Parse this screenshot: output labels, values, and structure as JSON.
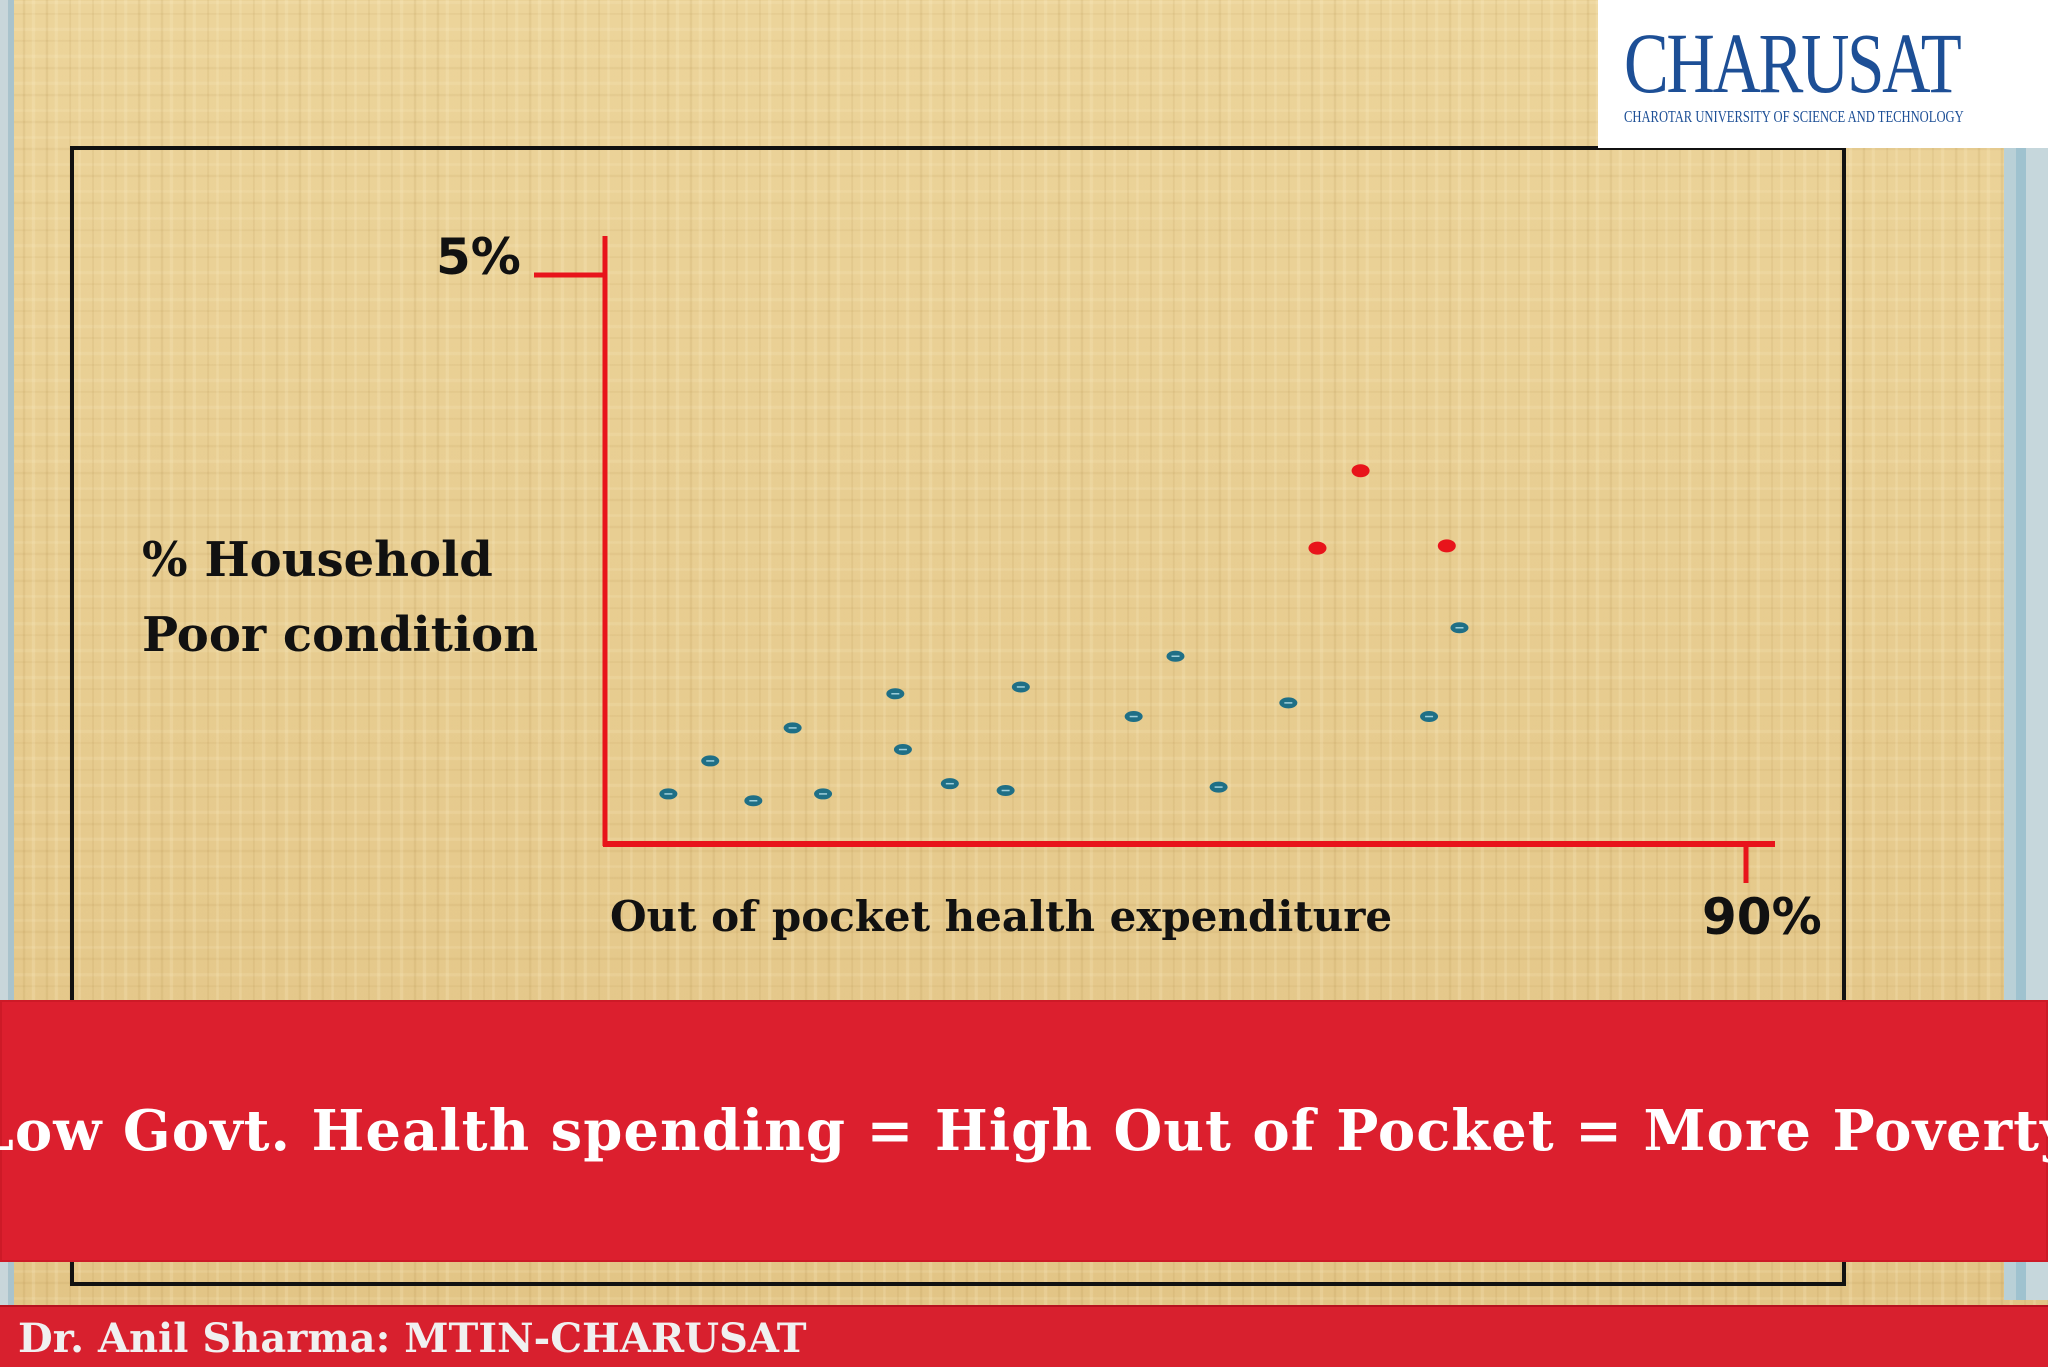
{
  "logo": {
    "title": "CHARUSAT",
    "subtitle": "CHAROTAR UNIVERSITY OF SCIENCE AND TECHNOLOGY",
    "icon": "charusat-emblem-icon"
  },
  "chart_data": {
    "type": "scatter",
    "title": "",
    "xlabel": "Out of pocket health expenditure",
    "ylabel_lines": [
      "% Household",
      "Poor condition"
    ],
    "x_tick_label": "90%",
    "y_tick_label": "5%",
    "xlim": [
      0,
      90
    ],
    "ylim": [
      0,
      5
    ],
    "grid": false,
    "legend": "none",
    "series": [
      {
        "color": "#1f6f86",
        "points": [
          {
            "x": 5,
            "y": 0.44
          },
          {
            "x": 8.3,
            "y": 0.73
          },
          {
            "x": 11.7,
            "y": 0.38
          },
          {
            "x": 14.8,
            "y": 1.02
          },
          {
            "x": 17.2,
            "y": 0.44
          },
          {
            "x": 22.9,
            "y": 1.32
          },
          {
            "x": 23.5,
            "y": 0.83
          },
          {
            "x": 27.2,
            "y": 0.53
          },
          {
            "x": 31.6,
            "y": 0.47
          },
          {
            "x": 32.8,
            "y": 1.38
          },
          {
            "x": 41.7,
            "y": 1.12
          },
          {
            "x": 45.0,
            "y": 1.65
          },
          {
            "x": 48.4,
            "y": 0.5
          },
          {
            "x": 53.9,
            "y": 1.24
          },
          {
            "x": 65.0,
            "y": 1.12
          },
          {
            "x": 67.4,
            "y": 1.9
          }
        ]
      },
      {
        "color": "#e8141b",
        "points": [
          {
            "x": 56.2,
            "y": 2.6
          },
          {
            "x": 59.6,
            "y": 3.28
          },
          {
            "x": 66.4,
            "y": 2.62
          }
        ]
      }
    ]
  },
  "banner": {
    "text": "Low Govt. Health spending = High Out of Pocket = More Poverty"
  },
  "footer": {
    "text": "Dr. Anil Sharma: MTIN-CHARUSAT"
  }
}
